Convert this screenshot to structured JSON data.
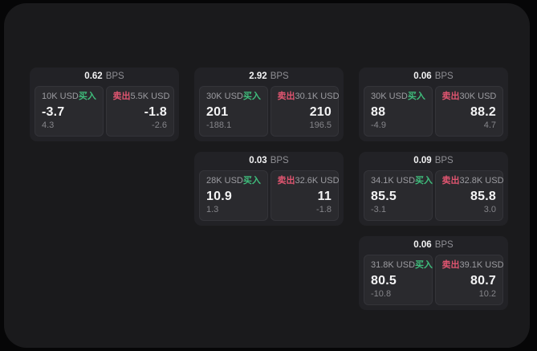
{
  "labels": {
    "bps_unit": "BPS",
    "buy": "买入",
    "sell": "卖出"
  },
  "colors": {
    "buy": "#3fbd7c",
    "sell": "#e05570",
    "panel_bg": "#1a1a1c",
    "card_bg": "#222226",
    "pane_bg": "#2a2a2e"
  },
  "cards": [
    {
      "row": 1,
      "col": 1,
      "bps": "0.62",
      "buy": {
        "size": "10K USD",
        "price": "-3.7",
        "delta": "4.3"
      },
      "sell": {
        "size": "5.5K USD",
        "price": "-1.8",
        "delta": "-2.6"
      }
    },
    {
      "row": 1,
      "col": 2,
      "bps": "2.92",
      "buy": {
        "size": "30K USD",
        "price": "201",
        "delta": "-188.1"
      },
      "sell": {
        "size": "30.1K USD",
        "price": "210",
        "delta": "196.5"
      }
    },
    {
      "row": 1,
      "col": 3,
      "bps": "0.06",
      "buy": {
        "size": "30K USD",
        "price": "88",
        "delta": "-4.9"
      },
      "sell": {
        "size": "30K USD",
        "price": "88.2",
        "delta": "4.7"
      }
    },
    {
      "row": 2,
      "col": 2,
      "bps": "0.03",
      "buy": {
        "size": "28K USD",
        "price": "10.9",
        "delta": "1.3"
      },
      "sell": {
        "size": "32.6K USD",
        "price": "11",
        "delta": "-1.8"
      }
    },
    {
      "row": 2,
      "col": 3,
      "bps": "0.09",
      "buy": {
        "size": "34.1K USD",
        "price": "85.5",
        "delta": "-3.1"
      },
      "sell": {
        "size": "32.8K USD",
        "price": "85.8",
        "delta": "3.0"
      }
    },
    {
      "row": 3,
      "col": 3,
      "bps": "0.06",
      "buy": {
        "size": "31.8K USD",
        "price": "80.5",
        "delta": "-10.8"
      },
      "sell": {
        "size": "39.1K USD",
        "price": "80.7",
        "delta": "10.2"
      }
    }
  ]
}
